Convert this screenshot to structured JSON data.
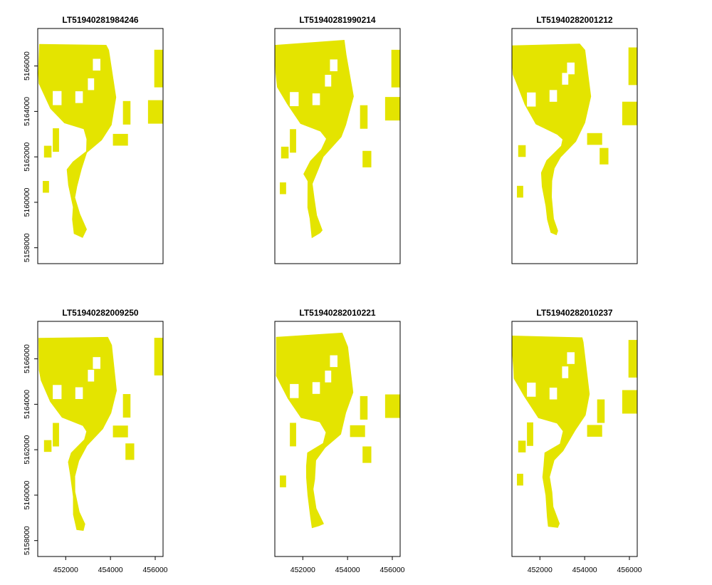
{
  "chart_data": {
    "type": "raster_map_grid",
    "fill_color": "#e4e400",
    "background_color": "#ffffff",
    "x_ticks": [
      452000,
      454000,
      456000
    ],
    "y_ticks": [
      5158000,
      5160000,
      5162000,
      5164000,
      5166000
    ],
    "xlim": [
      450750,
      456350
    ],
    "ylim": [
      5157300,
      5167650
    ],
    "panels": [
      {
        "title": "LT51940281984246"
      },
      {
        "title": "LT51940281990214"
      },
      {
        "title": "LT51940282001212"
      },
      {
        "title": "LT51940282009250"
      },
      {
        "title": "LT51940282010221"
      },
      {
        "title": "LT51940282010237"
      }
    ]
  }
}
